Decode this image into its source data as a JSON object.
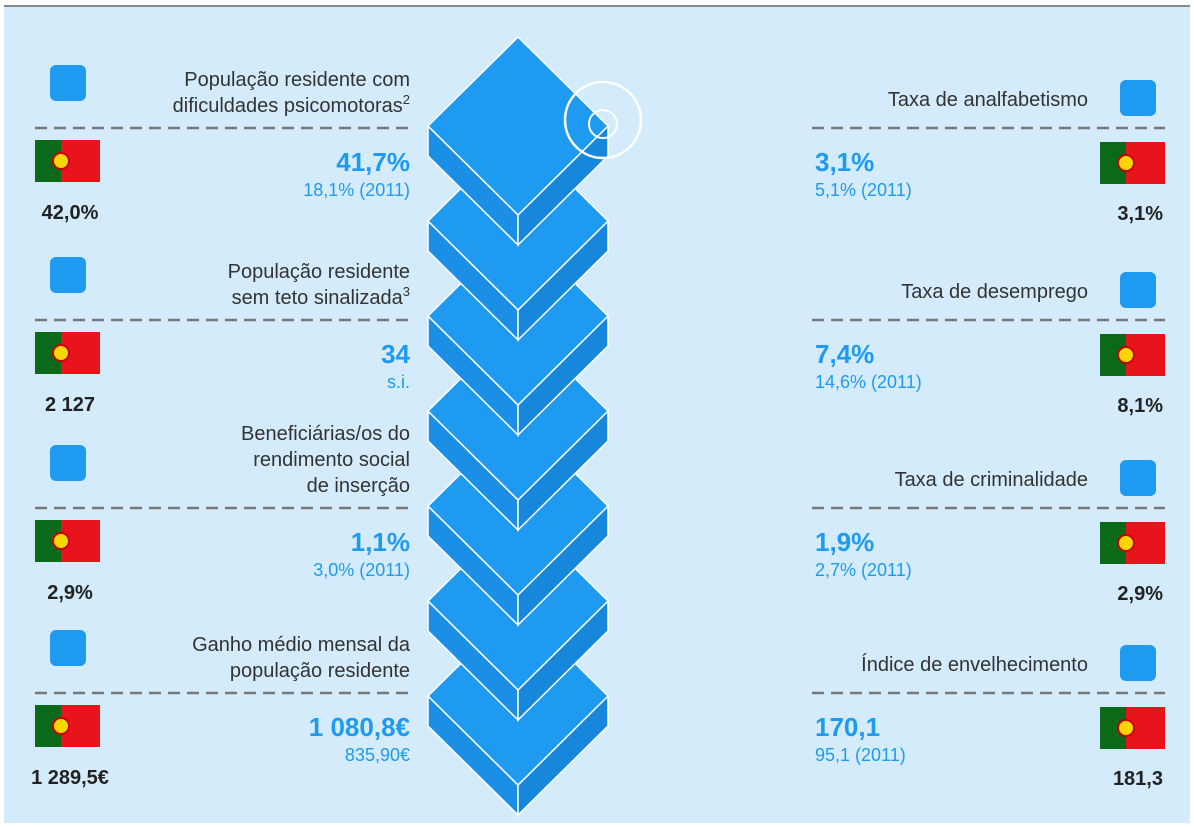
{
  "left": [
    {
      "label": [
        "População residente com",
        "dificuldades psicomotoras"
      ],
      "note": "2",
      "value": "41,7%",
      "sub": "18,1% (2011)",
      "national": "42,0%"
    },
    {
      "label": [
        "População residente",
        "sem teto sinalizada"
      ],
      "note": "3",
      "value": "34",
      "sub": "s.i.",
      "national": "2 127"
    },
    {
      "label": [
        "Beneficiárias/os do",
        "rendimento social",
        "de inserção"
      ],
      "value": "1,1%",
      "sub": "3,0% (2011)",
      "national": "2,9%"
    },
    {
      "label": [
        "Ganho médio mensal da",
        "população residente"
      ],
      "value": "1 080,8€",
      "sub": "835,90€",
      "national": "1 289,5€"
    }
  ],
  "right": [
    {
      "label": "Taxa de analfabetismo",
      "value": "3,1%",
      "sub": "5,1% (2011)",
      "national": "3,1%"
    },
    {
      "label": "Taxa de desemprego",
      "value": "7,4%",
      "sub": "14,6% (2011)",
      "national": "8,1%"
    },
    {
      "label": "Taxa de criminalidade",
      "value": "1,9%",
      "sub": "2,7% (2011)",
      "national": "2,9%"
    },
    {
      "label": "Índice de envelhecimento",
      "value": "170,1",
      "sub": "95,1 (2011)",
      "national": "181,3"
    }
  ]
}
